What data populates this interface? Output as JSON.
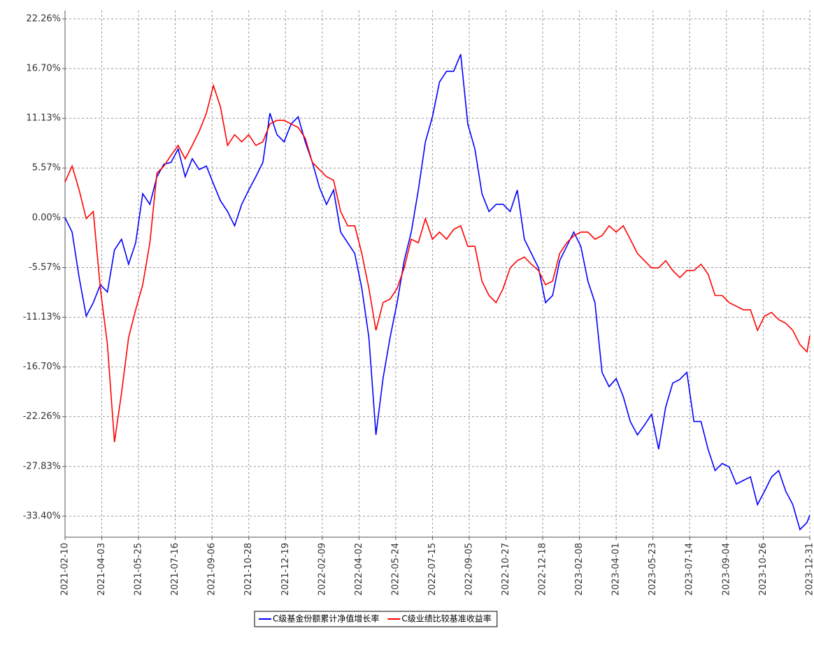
{
  "chart_data": {
    "type": "line",
    "x": [
      "2021-02-10",
      "2021-02-20",
      "2021-03-02",
      "2021-03-12",
      "2021-03-22",
      "2021-04-01",
      "2021-04-11",
      "2021-04-21",
      "2021-05-01",
      "2021-05-11",
      "2021-05-21",
      "2021-05-31",
      "2021-06-10",
      "2021-06-20",
      "2021-06-30",
      "2021-07-10",
      "2021-07-20",
      "2021-07-30",
      "2021-08-09",
      "2021-08-19",
      "2021-08-29",
      "2021-09-08",
      "2021-09-18",
      "2021-09-28",
      "2021-10-08",
      "2021-10-18",
      "2021-10-28",
      "2021-11-07",
      "2021-11-17",
      "2021-11-27",
      "2021-12-07",
      "2021-12-17",
      "2021-12-27",
      "2022-01-06",
      "2022-01-16",
      "2022-01-26",
      "2022-02-05",
      "2022-02-15",
      "2022-02-25",
      "2022-03-07",
      "2022-03-17",
      "2022-03-27",
      "2022-04-06",
      "2022-04-16",
      "2022-04-26",
      "2022-05-06",
      "2022-05-16",
      "2022-05-26",
      "2022-06-05",
      "2022-06-15",
      "2022-06-25",
      "2022-07-05",
      "2022-07-15",
      "2022-07-25",
      "2022-08-04",
      "2022-08-14",
      "2022-08-24",
      "2022-09-03",
      "2022-09-13",
      "2022-09-23",
      "2022-10-03",
      "2022-10-13",
      "2022-10-23",
      "2022-11-02",
      "2022-11-12",
      "2022-11-22",
      "2022-12-02",
      "2022-12-12",
      "2022-12-22",
      "2023-01-01",
      "2023-01-11",
      "2023-01-21",
      "2023-01-31",
      "2023-02-10",
      "2023-02-20",
      "2023-03-02",
      "2023-03-12",
      "2023-03-22",
      "2023-04-01",
      "2023-04-11",
      "2023-04-21",
      "2023-05-01",
      "2023-05-11",
      "2023-05-21",
      "2023-05-31",
      "2023-06-10",
      "2023-06-20",
      "2023-06-30",
      "2023-07-10",
      "2023-07-20",
      "2023-07-30",
      "2023-08-09",
      "2023-08-19",
      "2023-08-29",
      "2023-09-08",
      "2023-09-18",
      "2023-09-28",
      "2023-10-08",
      "2023-10-18",
      "2023-10-28",
      "2023-11-07",
      "2023-11-17",
      "2023-11-27",
      "2023-12-07",
      "2023-12-17",
      "2023-12-27",
      "2023-12-31"
    ],
    "series": [
      {
        "name": "C级基金份额累计净值增长率",
        "color": "#0000ff",
        "values": [
          0.0,
          -1.6,
          -6.7,
          -11.0,
          -9.5,
          -7.5,
          -8.3,
          -3.6,
          -2.4,
          -5.2,
          -2.8,
          2.7,
          1.5,
          4.6,
          6.0,
          6.2,
          7.7,
          4.6,
          6.6,
          5.4,
          5.8,
          3.8,
          1.9,
          0.7,
          -0.9,
          1.5,
          3.1,
          4.6,
          6.2,
          11.7,
          9.3,
          8.5,
          10.5,
          11.3,
          8.5,
          6.2,
          3.4,
          1.5,
          3.1,
          -1.6,
          -2.8,
          -4.0,
          -7.9,
          -13.4,
          -24.3,
          -18.0,
          -13.4,
          -9.5,
          -4.8,
          -1.6,
          3.1,
          8.5,
          11.3,
          15.2,
          16.4,
          16.4,
          18.3,
          10.5,
          7.7,
          2.7,
          0.7,
          1.5,
          1.5,
          0.7,
          3.1,
          -2.4,
          -4.0,
          -5.6,
          -9.5,
          -8.7,
          -4.8,
          -3.2,
          -1.6,
          -3.2,
          -7.1,
          -9.5,
          -17.3,
          -18.9,
          -18.0,
          -20.0,
          -22.8,
          -24.3,
          -23.2,
          -22.0,
          -25.9,
          -21.2,
          -18.5,
          -18.1,
          -17.3,
          -22.8,
          -22.8,
          -25.9,
          -28.3,
          -27.5,
          -27.9,
          -29.8,
          -29.4,
          -29.0,
          -32.1,
          -30.6,
          -29.0,
          -28.3,
          -30.6,
          -32.1,
          -34.9,
          -34.1,
          -33.3
        ]
      },
      {
        "name": "C级业绩比较基准收益率",
        "color": "#ff0000",
        "values": [
          4.0,
          5.8,
          3.1,
          -0.1,
          0.7,
          -7.9,
          -14.2,
          -25.1,
          -19.6,
          -13.4,
          -10.3,
          -7.5,
          -2.8,
          5.0,
          5.8,
          7.0,
          8.1,
          6.6,
          8.1,
          9.7,
          11.7,
          14.8,
          12.4,
          8.1,
          9.3,
          8.5,
          9.3,
          8.1,
          8.5,
          10.5,
          10.9,
          10.9,
          10.5,
          10.1,
          8.9,
          6.2,
          5.4,
          4.6,
          4.2,
          0.7,
          -0.9,
          -0.9,
          -4.0,
          -7.9,
          -12.6,
          -9.5,
          -9.1,
          -7.9,
          -5.6,
          -2.4,
          -2.8,
          -0.1,
          -2.4,
          -1.6,
          -2.4,
          -1.3,
          -0.9,
          -3.2,
          -3.2,
          -7.1,
          -8.7,
          -9.5,
          -7.9,
          -5.6,
          -4.8,
          -4.4,
          -5.2,
          -5.9,
          -7.5,
          -7.1,
          -4.0,
          -2.8,
          -2.0,
          -1.6,
          -1.6,
          -2.4,
          -2.0,
          -0.9,
          -1.6,
          -0.9,
          -2.4,
          -4.0,
          -4.8,
          -5.6,
          -5.6,
          -4.8,
          -5.9,
          -6.7,
          -5.9,
          -5.9,
          -5.2,
          -6.3,
          -8.7,
          -8.7,
          -9.5,
          -9.9,
          -10.3,
          -10.3,
          -12.6,
          -11.0,
          -10.6,
          -11.4,
          -11.8,
          -12.6,
          -14.2,
          -15.0,
          -13.2
        ]
      }
    ],
    "xlim": [
      "2021-02-10",
      "2023-12-31"
    ],
    "xticks": [
      "2021-02-10",
      "2021-04-03",
      "2021-05-25",
      "2021-07-16",
      "2021-09-06",
      "2021-10-28",
      "2021-12-19",
      "2022-02-09",
      "2022-04-02",
      "2022-05-24",
      "2022-07-15",
      "2022-09-05",
      "2022-10-27",
      "2022-12-18",
      "2023-02-08",
      "2023-04-01",
      "2023-05-23",
      "2023-07-14",
      "2023-09-04",
      "2023-10-26",
      "2023-12-31"
    ],
    "ylim": [
      -35.75,
      23.2
    ],
    "yticks": [
      {
        "value": 22.26,
        "label": "22.26%"
      },
      {
        "value": 16.7,
        "label": "16.70%"
      },
      {
        "value": 11.13,
        "label": "11.13%"
      },
      {
        "value": 5.57,
        "label": "5.57%"
      },
      {
        "value": 0,
        "label": "0.00%"
      },
      {
        "value": -5.57,
        "label": "-5.57%"
      },
      {
        "value": -11.13,
        "label": "-11.13%"
      },
      {
        "value": -16.7,
        "label": "-16.70%"
      },
      {
        "value": -22.26,
        "label": "-22.26%"
      },
      {
        "value": -27.83,
        "label": "-27.83%"
      },
      {
        "value": -33.4,
        "label": "-33.40%"
      }
    ],
    "grid": true
  }
}
